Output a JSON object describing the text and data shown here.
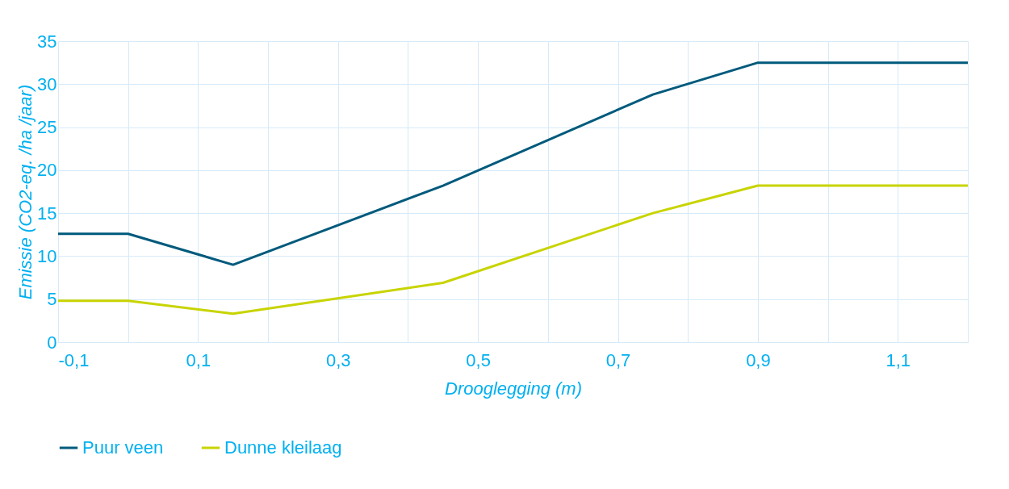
{
  "chart_data": {
    "type": "line",
    "xlabel": "Drooglegging (m)",
    "ylabel": "Emissie (CO2-eq. /ha /jaar)",
    "x": [
      -0.1,
      0,
      0.15,
      0.45,
      0.75,
      0.9,
      1.2
    ],
    "series": [
      {
        "name": "Puur veen",
        "color": "#005a7c",
        "values": [
          12.6,
          12.6,
          9.0,
          18.2,
          28.8,
          32.5,
          32.5
        ]
      },
      {
        "name": "Dunne kleilaag",
        "color": "#c8d400",
        "values": [
          4.8,
          4.8,
          3.3,
          6.9,
          15.0,
          18.2,
          18.2
        ]
      }
    ],
    "xlim": [
      -0.1,
      1.2
    ],
    "xticks": [
      {
        "value": -0.1,
        "label": "-0,1"
      },
      {
        "value": 0,
        "label": null
      },
      {
        "value": 0.1,
        "label": "0,1"
      },
      {
        "value": 0.2,
        "label": null
      },
      {
        "value": 0.3,
        "label": "0,3"
      },
      {
        "value": 0.4,
        "label": null
      },
      {
        "value": 0.5,
        "label": "0,5"
      },
      {
        "value": 0.6,
        "label": null
      },
      {
        "value": 0.7,
        "label": "0,7"
      },
      {
        "value": 0.8,
        "label": null
      },
      {
        "value": 0.9,
        "label": "0,9"
      },
      {
        "value": 1.0,
        "label": null
      },
      {
        "value": 1.1,
        "label": "1,1"
      },
      {
        "value": 1.2,
        "label": null
      }
    ],
    "ylim": [
      0,
      35
    ],
    "yticks": [
      0,
      5,
      10,
      15,
      20,
      25,
      30,
      35
    ],
    "grid": true,
    "legend": "bottom",
    "marker": "none",
    "line_style": "solid"
  }
}
